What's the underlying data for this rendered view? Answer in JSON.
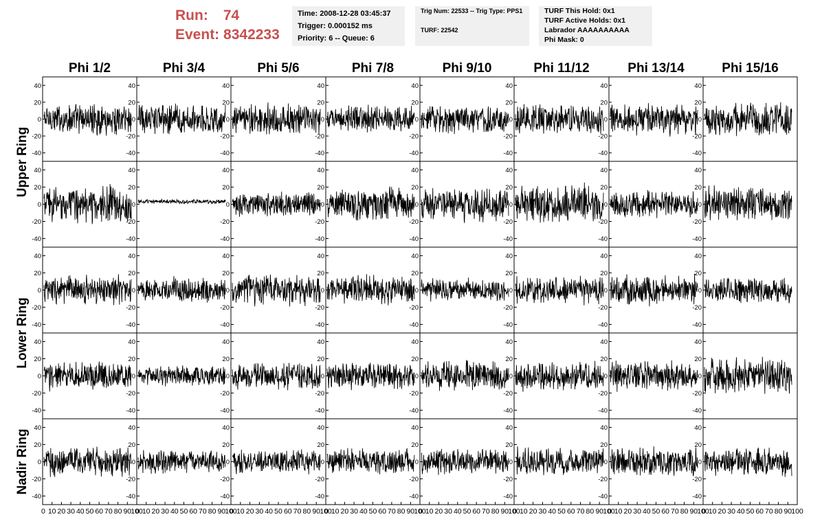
{
  "header": {
    "run_label": "Run:",
    "run_value": "74",
    "event_label": "Event:",
    "event_value": "8342233"
  },
  "info": {
    "time": "Time: 2008-12-28 03:45:37",
    "trigger": "Trigger: 0.000152 ms",
    "priority": "Priority: 6 -- Queue: 6",
    "trig_num": "Trig Num: 22533 -- Trig Type: PPS1",
    "turf": "TURF: 22542",
    "turf_this_hold": "TURF This Hold: 0x1",
    "turf_active_holds": "TURF Active Holds: 0x1",
    "labrador": "Labrador AAAAAAAAAA",
    "phi_mask": "Phi Mask: 0"
  },
  "colors": {
    "title_red": "#c8504f",
    "info_bg": "#f0f0f0",
    "trace": "#000000"
  },
  "chart_data": {
    "type": "line",
    "columns": [
      "Phi 1/2",
      "Phi 3/4",
      "Phi 5/6",
      "Phi 7/8",
      "Phi 9/10",
      "Phi 11/12",
      "Phi 13/14",
      "Phi 15/16"
    ],
    "rings": [
      {
        "label": "Upper Ring",
        "rows": 2
      },
      {
        "label": "Lower Ring",
        "rows": 2
      },
      {
        "label": "Nadir Ring",
        "rows": 1
      }
    ],
    "ylim": [
      -50,
      50
    ],
    "yticks": [
      -40,
      -20,
      0,
      20,
      40
    ],
    "xlim": [
      0,
      100
    ],
    "xticks": [
      0,
      10,
      20,
      30,
      40,
      50,
      60,
      70,
      80,
      90,
      100
    ],
    "samples_per_trace": 260,
    "trace_amplitude": [
      [
        14,
        14,
        14,
        12,
        13,
        14,
        14,
        15
      ],
      [
        16,
        2,
        11,
        16,
        15,
        17,
        12,
        16
      ],
      [
        13,
        11,
        14,
        13,
        10,
        12,
        13,
        11
      ],
      [
        13,
        9,
        12,
        12,
        13,
        13,
        13,
        16
      ],
      [
        13,
        10,
        10,
        11,
        11,
        13,
        13,
        13
      ]
    ],
    "trace_offset": [
      [
        0,
        0,
        0,
        0,
        0,
        0,
        0,
        0
      ],
      [
        0,
        3,
        0,
        0,
        0,
        0,
        0,
        0
      ],
      [
        0,
        0,
        0,
        0,
        0,
        0,
        0,
        0
      ],
      [
        0,
        0,
        0,
        0,
        0,
        0,
        0,
        0
      ],
      [
        0,
        0,
        0,
        0,
        0,
        0,
        0,
        0
      ]
    ]
  }
}
